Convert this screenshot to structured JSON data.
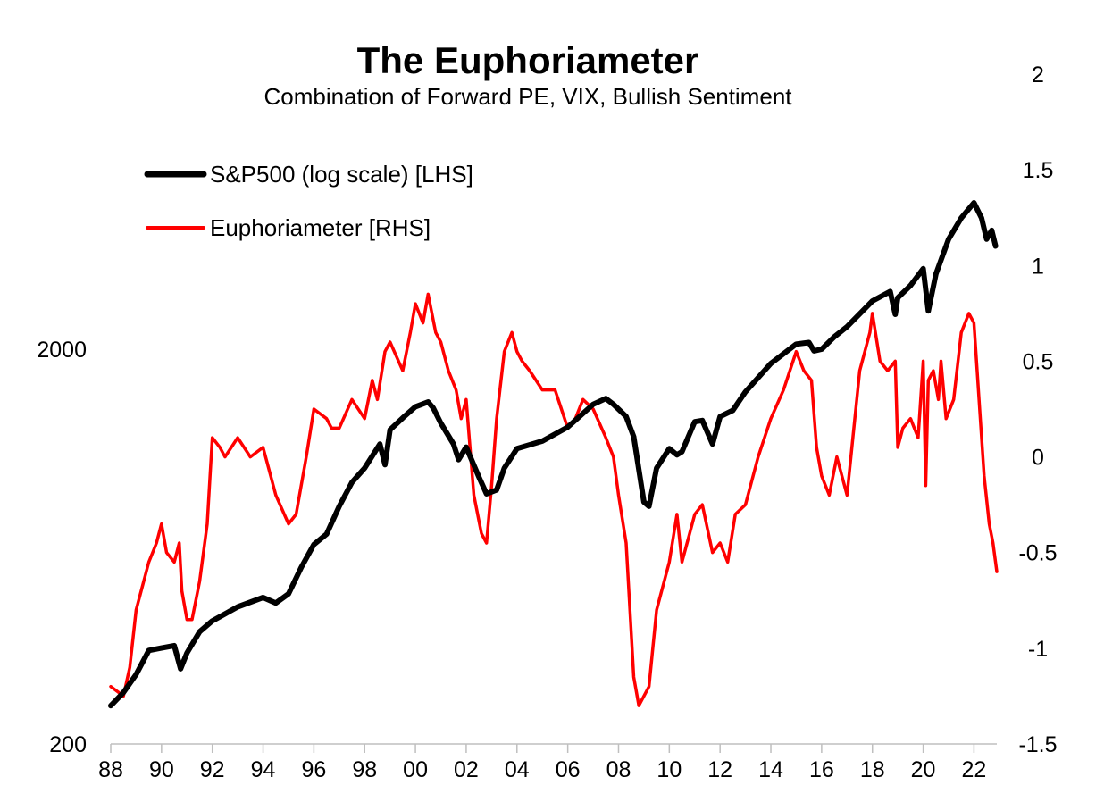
{
  "chart_data": {
    "type": "line",
    "title": "The Euphoriameter",
    "subtitle": "Combination of Forward PE, VIX, Bullish Sentiment",
    "legend": {
      "placement": "top-left",
      "entries": [
        "S&P500 (log scale) [LHS]",
        "Euphoriameter [RHS]"
      ]
    },
    "grid": false,
    "x_axis": {
      "range": [
        1988.0,
        2022.9
      ],
      "tick_values": [
        1988,
        1990,
        1992,
        1994,
        1996,
        1998,
        2000,
        2002,
        2004,
        2006,
        2008,
        2010,
        2012,
        2014,
        2016,
        2018,
        2020,
        2022
      ],
      "tick_labels": [
        "88",
        "90",
        "92",
        "94",
        "96",
        "98",
        "00",
        "02",
        "04",
        "06",
        "08",
        "10",
        "12",
        "14",
        "16",
        "18",
        "20",
        "22"
      ]
    },
    "y_left": {
      "scale": "log",
      "range": [
        200,
        5000
      ],
      "tick_values": [
        200,
        2000
      ],
      "tick_labels": [
        "200",
        "2000"
      ]
    },
    "y_right": {
      "scale": "linear",
      "range": [
        -1.5,
        2.0
      ],
      "tick_values": [
        -1.5,
        -1,
        -0.5,
        0,
        0.5,
        1,
        1.5,
        2
      ],
      "tick_labels": [
        "-1.5",
        "-1",
        "-0.5",
        "0",
        "0.5",
        "1",
        "1.5",
        "2"
      ]
    },
    "series": [
      {
        "name": "S&P500 (log scale) [LHS]",
        "axis": "left",
        "color": "#000000",
        "x": [
          1988.0,
          1988.5,
          1989.0,
          1989.5,
          1990.0,
          1990.5,
          1990.75,
          1991.0,
          1991.5,
          1992.0,
          1993.0,
          1994.0,
          1994.5,
          1995.0,
          1995.5,
          1996.0,
          1996.5,
          1997.0,
          1997.5,
          1998.0,
          1998.6,
          1998.8,
          1999.0,
          1999.5,
          2000.0,
          2000.5,
          2000.7,
          2001.0,
          2001.5,
          2001.7,
          2002.0,
          2002.5,
          2002.8,
          2003.2,
          2003.5,
          2004.0,
          2005.0,
          2006.0,
          2007.0,
          2007.5,
          2007.8,
          2008.3,
          2008.6,
          2009.0,
          2009.2,
          2009.5,
          2010.0,
          2010.3,
          2010.5,
          2011.0,
          2011.3,
          2011.7,
          2012.0,
          2012.5,
          2013.0,
          2014.0,
          2015.0,
          2015.5,
          2015.7,
          2016.0,
          2016.5,
          2017.0,
          2018.0,
          2018.7,
          2018.9,
          2019.0,
          2019.5,
          2020.0,
          2020.2,
          2020.5,
          2021.0,
          2021.5,
          2022.0,
          2022.3,
          2022.5,
          2022.7,
          2022.85
        ],
        "values": [
          250,
          270,
          300,
          345,
          350,
          355,
          310,
          340,
          385,
          410,
          445,
          470,
          455,
          480,
          560,
          640,
          680,
          800,
          920,
          1000,
          1150,
          1020,
          1250,
          1340,
          1430,
          1470,
          1420,
          1300,
          1150,
          1050,
          1130,
          950,
          860,
          880,
          1000,
          1120,
          1170,
          1270,
          1450,
          1500,
          1450,
          1350,
          1200,
          820,
          800,
          1000,
          1120,
          1080,
          1100,
          1310,
          1320,
          1150,
          1350,
          1400,
          1560,
          1840,
          2060,
          2080,
          1980,
          2000,
          2150,
          2280,
          2650,
          2800,
          2450,
          2700,
          2900,
          3200,
          2500,
          3100,
          3800,
          4300,
          4700,
          4300,
          3800,
          4000,
          3650
        ]
      },
      {
        "name": "Euphoriameter [RHS]",
        "axis": "right",
        "color": "#ff0000",
        "x": [
          1988.0,
          1988.5,
          1988.75,
          1989.0,
          1989.5,
          1989.8,
          1990.0,
          1990.2,
          1990.5,
          1990.7,
          1990.8,
          1991.0,
          1991.2,
          1991.5,
          1991.8,
          1992.0,
          1992.3,
          1992.5,
          1993.0,
          1993.5,
          1994.0,
          1994.5,
          1995.0,
          1995.3,
          1995.7,
          1996.0,
          1996.5,
          1996.7,
          1997.0,
          1997.5,
          1998.0,
          1998.3,
          1998.5,
          1998.8,
          1999.0,
          1999.5,
          1999.8,
          2000.0,
          2000.3,
          2000.5,
          2000.8,
          2001.0,
          2001.3,
          2001.6,
          2001.8,
          2002.0,
          2002.3,
          2002.6,
          2002.8,
          2003.0,
          2003.2,
          2003.5,
          2003.8,
          2004.0,
          2004.2,
          2004.5,
          2005.0,
          2005.5,
          2006.0,
          2006.3,
          2006.6,
          2007.0,
          2007.5,
          2007.8,
          2008.0,
          2008.3,
          2008.6,
          2008.8,
          2009.0,
          2009.2,
          2009.5,
          2010.0,
          2010.3,
          2010.5,
          2010.8,
          2011.0,
          2011.3,
          2011.7,
          2012.0,
          2012.3,
          2012.6,
          2013.0,
          2013.5,
          2014.0,
          2014.5,
          2015.0,
          2015.3,
          2015.6,
          2015.8,
          2016.0,
          2016.3,
          2016.6,
          2017.0,
          2017.5,
          2017.9,
          2018.0,
          2018.3,
          2018.6,
          2018.9,
          2019.0,
          2019.2,
          2019.5,
          2019.8,
          2020.0,
          2020.1,
          2020.2,
          2020.4,
          2020.6,
          2020.7,
          2020.9,
          2021.2,
          2021.5,
          2021.8,
          2022.0,
          2022.2,
          2022.4,
          2022.6,
          2022.75,
          2022.9
        ],
        "values": [
          -1.2,
          -1.25,
          -1.1,
          -0.8,
          -0.55,
          -0.45,
          -0.35,
          -0.5,
          -0.55,
          -0.45,
          -0.7,
          -0.85,
          -0.85,
          -0.65,
          -0.35,
          0.1,
          0.05,
          0.0,
          0.1,
          0.0,
          0.05,
          -0.2,
          -0.35,
          -0.3,
          0.0,
          0.25,
          0.2,
          0.15,
          0.15,
          0.3,
          0.2,
          0.4,
          0.3,
          0.55,
          0.6,
          0.45,
          0.65,
          0.8,
          0.7,
          0.85,
          0.65,
          0.6,
          0.45,
          0.35,
          0.2,
          0.3,
          -0.2,
          -0.4,
          -0.45,
          -0.15,
          0.2,
          0.55,
          0.65,
          0.55,
          0.5,
          0.45,
          0.35,
          0.35,
          0.15,
          0.2,
          0.3,
          0.25,
          0.1,
          0.0,
          -0.2,
          -0.45,
          -1.15,
          -1.3,
          -1.25,
          -1.2,
          -0.8,
          -0.55,
          -0.3,
          -0.55,
          -0.4,
          -0.3,
          -0.25,
          -0.5,
          -0.45,
          -0.55,
          -0.3,
          -0.25,
          0.0,
          0.2,
          0.35,
          0.55,
          0.45,
          0.4,
          0.05,
          -0.1,
          -0.2,
          0.0,
          -0.2,
          0.45,
          0.65,
          0.75,
          0.5,
          0.45,
          0.5,
          0.05,
          0.15,
          0.2,
          0.1,
          0.5,
          -0.15,
          0.4,
          0.45,
          0.3,
          0.5,
          0.2,
          0.3,
          0.65,
          0.75,
          0.7,
          0.3,
          -0.1,
          -0.35,
          -0.45,
          -0.6
        ]
      }
    ]
  }
}
